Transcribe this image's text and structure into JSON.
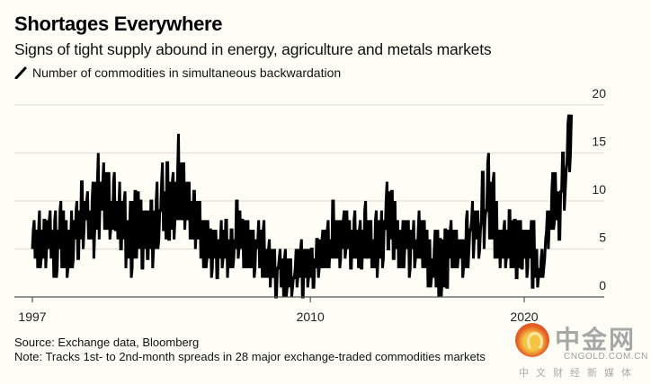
{
  "header": {
    "title": "Shortages Everywhere",
    "subtitle": "Signs of tight supply abound in energy, agriculture and metals markets"
  },
  "footer": {
    "source": "Source: Exchange data, Bloomberg",
    "note": "Note: Tracks 1st- to 2nd-month spreads in 28 major exchange-traded commodities markets"
  },
  "watermark": {
    "name": "中金网",
    "domain": "CNGOLD.COM.CN",
    "tagline": "中文财经新媒体"
  },
  "colors": {
    "background": "#fefdf6",
    "series": "#000000",
    "grid": "#e6dfd8",
    "axis": "#555555"
  },
  "chart_data": {
    "type": "line",
    "title": "Shortages Everywhere",
    "subtitle": "Signs of tight supply abound in energy, agriculture and metals markets",
    "xlabel": "",
    "ylabel": "",
    "legend": [
      {
        "name": "Number of commodities in simultaneous backwardation",
        "position": "top-left"
      }
    ],
    "x_ticks": [
      1997,
      2010,
      2020
    ],
    "x_tick_labels": [
      "1997",
      "2010",
      "2020"
    ],
    "y_ticks": [
      0,
      5,
      10,
      15,
      20
    ],
    "y_tick_labels": [
      "0",
      "5",
      "10",
      "15",
      "20"
    ],
    "xlim": [
      1997,
      2022.3
    ],
    "ylim": [
      0,
      20
    ],
    "grid": true,
    "y_axis_side": "right",
    "series": [
      {
        "name": "Number of commodities in simultaneous backwardation",
        "resolution": "quarterly envelope [low, high] of weekly values, starting 1997.0",
        "start": 1997.0,
        "step": 0.25,
        "envelope": [
          [
            4,
            8
          ],
          [
            3,
            9
          ],
          [
            3,
            8
          ],
          [
            4,
            9
          ],
          [
            2,
            9
          ],
          [
            3,
            10
          ],
          [
            2,
            8
          ],
          [
            3,
            9
          ],
          [
            4,
            10
          ],
          [
            5,
            12
          ],
          [
            6,
            11
          ],
          [
            4,
            12
          ],
          [
            6,
            15
          ],
          [
            7,
            14
          ],
          [
            6,
            13
          ],
          [
            7,
            13
          ],
          [
            5,
            12
          ],
          [
            3,
            11
          ],
          [
            2,
            10
          ],
          [
            4,
            11
          ],
          [
            3,
            10
          ],
          [
            4,
            9
          ],
          [
            3,
            10
          ],
          [
            5,
            12
          ],
          [
            7,
            14
          ],
          [
            6,
            14
          ],
          [
            6,
            13
          ],
          [
            8,
            17
          ],
          [
            7,
            14
          ],
          [
            6,
            12
          ],
          [
            5,
            11
          ],
          [
            4,
            10
          ],
          [
            3,
            8
          ],
          [
            2,
            7
          ],
          [
            2,
            7
          ],
          [
            3,
            8
          ],
          [
            2,
            8
          ],
          [
            3,
            7
          ],
          [
            4,
            10
          ],
          [
            3,
            8
          ],
          [
            3,
            8
          ],
          [
            2,
            7
          ],
          [
            3,
            8
          ],
          [
            2,
            8
          ],
          [
            1,
            6
          ],
          [
            0,
            5
          ],
          [
            1,
            5
          ],
          [
            0,
            5
          ],
          [
            0,
            4
          ],
          [
            1,
            5
          ],
          [
            0,
            6
          ],
          [
            1,
            5
          ],
          [
            1,
            5
          ],
          [
            2,
            6
          ],
          [
            3,
            7
          ],
          [
            3,
            8
          ],
          [
            4,
            10
          ],
          [
            3,
            8
          ],
          [
            4,
            9
          ],
          [
            3,
            8
          ],
          [
            4,
            9
          ],
          [
            3,
            8
          ],
          [
            4,
            10
          ],
          [
            3,
            8
          ],
          [
            2,
            9
          ],
          [
            3,
            9
          ],
          [
            5,
            12
          ],
          [
            4,
            11
          ],
          [
            3,
            8
          ],
          [
            3,
            8
          ],
          [
            2,
            8
          ],
          [
            3,
            8
          ],
          [
            4,
            9
          ],
          [
            3,
            8
          ],
          [
            1,
            6
          ],
          [
            1,
            7
          ],
          [
            0,
            6
          ],
          [
            1,
            7
          ],
          [
            3,
            8
          ],
          [
            3,
            7
          ],
          [
            2,
            6
          ],
          [
            3,
            9
          ],
          [
            4,
            10
          ],
          [
            4,
            9
          ],
          [
            5,
            13
          ],
          [
            6,
            15
          ],
          [
            4,
            13
          ],
          [
            3,
            7
          ],
          [
            3,
            8
          ],
          [
            3,
            9
          ],
          [
            2,
            8
          ],
          [
            3,
            8
          ],
          [
            2,
            7
          ],
          [
            1,
            8
          ],
          [
            1,
            5
          ],
          [
            2,
            5
          ],
          [
            5,
            9
          ],
          [
            7,
            13
          ],
          [
            6,
            11
          ],
          [
            9,
            15
          ],
          [
            13,
            19
          ]
        ]
      }
    ]
  }
}
